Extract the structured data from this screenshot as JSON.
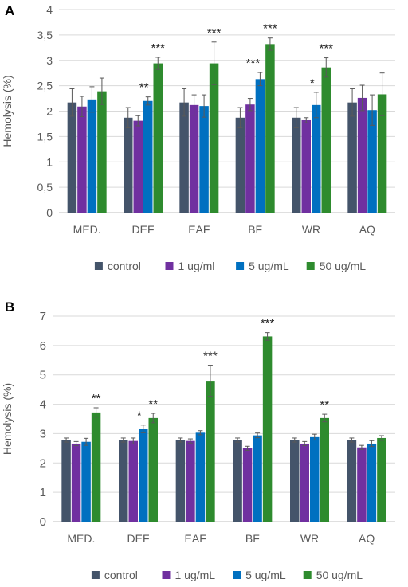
{
  "panels": [
    {
      "letter": "A",
      "chart_data": {
        "type": "bar",
        "categories": [
          "MED.",
          "DEF",
          "EAF",
          "BF",
          "WR",
          "AQ"
        ],
        "ylabel": "Hemolysis (%)",
        "xlabel": "",
        "ylim": [
          0,
          4
        ],
        "yticks": [
          "0",
          "0,5",
          "1",
          "1,5",
          "2",
          "2,5",
          "3",
          "3,5",
          "4"
        ],
        "grid": true,
        "legend": "bottom",
        "series": [
          {
            "name": "control",
            "color": "#44546a",
            "values": [
              2.17,
              1.87,
              2.17,
              1.87,
              1.87,
              2.17
            ],
            "errors": [
              0.27,
              0.2,
              0.27,
              0.2,
              0.2,
              0.27
            ],
            "marks": [
              "",
              "",
              "",
              "",
              "",
              ""
            ]
          },
          {
            "name": "1 ug/ml",
            "color": "#7030a0",
            "values": [
              2.09,
              1.81,
              2.12,
              2.13,
              1.82,
              2.26
            ],
            "errors": [
              0.2,
              0.1,
              0.2,
              0.12,
              0.05,
              0.25
            ],
            "marks": [
              "",
              "",
              "",
              "",
              "",
              ""
            ]
          },
          {
            "name": "5 ug/mL",
            "color": "#0070c0",
            "values": [
              2.23,
              2.2,
              2.1,
              2.63,
              2.12,
              2.02
            ],
            "errors": [
              0.25,
              0.08,
              0.22,
              0.13,
              0.25,
              0.3
            ],
            "marks": [
              "",
              "**",
              "",
              "***",
              "*",
              ""
            ]
          },
          {
            "name": "50 ug/mL",
            "color": "#2e8b2e",
            "values": [
              2.39,
              2.94,
              2.94,
              3.32,
              2.86,
              2.33
            ],
            "errors": [
              0.26,
              0.12,
              0.42,
              0.12,
              0.19,
              0.42
            ],
            "marks": [
              "",
              "***",
              "***",
              "***",
              "***",
              ""
            ]
          }
        ]
      }
    },
    {
      "letter": "B",
      "chart_data": {
        "type": "bar",
        "categories": [
          "MED.",
          "DEF",
          "EAF",
          "BF",
          "WR",
          "AQ"
        ],
        "ylabel": "Hemolysis (%)",
        "xlabel": "",
        "ylim": [
          0,
          7
        ],
        "yticks": [
          "0",
          "1",
          "2",
          "3",
          "4",
          "5",
          "6",
          "7"
        ],
        "grid": true,
        "legend": "bottom",
        "series": [
          {
            "name": "control",
            "color": "#44546a",
            "values": [
              2.78,
              2.78,
              2.78,
              2.78,
              2.78,
              2.78
            ],
            "errors": [
              0.07,
              0.07,
              0.07,
              0.07,
              0.07,
              0.07
            ],
            "marks": [
              "",
              "",
              "",
              "",
              "",
              ""
            ]
          },
          {
            "name": "1 ug/mL",
            "color": "#7030a0",
            "values": [
              2.66,
              2.75,
              2.75,
              2.5,
              2.66,
              2.53
            ],
            "errors": [
              0.07,
              0.1,
              0.07,
              0.07,
              0.07,
              0.07
            ],
            "marks": [
              "",
              "",
              "",
              "",
              "",
              ""
            ]
          },
          {
            "name": "5 ug/mL",
            "color": "#0070c0",
            "values": [
              2.72,
              3.16,
              3.03,
              2.94,
              2.88,
              2.66
            ],
            "errors": [
              0.12,
              0.13,
              0.07,
              0.08,
              0.1,
              0.1
            ],
            "marks": [
              "",
              "*",
              "",
              "",
              "",
              ""
            ]
          },
          {
            "name": "50 ug/mL",
            "color": "#2e8b2e",
            "values": [
              3.72,
              3.53,
              4.8,
              6.31,
              3.53,
              2.85
            ],
            "errors": [
              0.16,
              0.16,
              0.53,
              0.13,
              0.13,
              0.08
            ],
            "marks": [
              "**",
              "**",
              "***",
              "***",
              "**",
              ""
            ]
          }
        ]
      }
    }
  ]
}
